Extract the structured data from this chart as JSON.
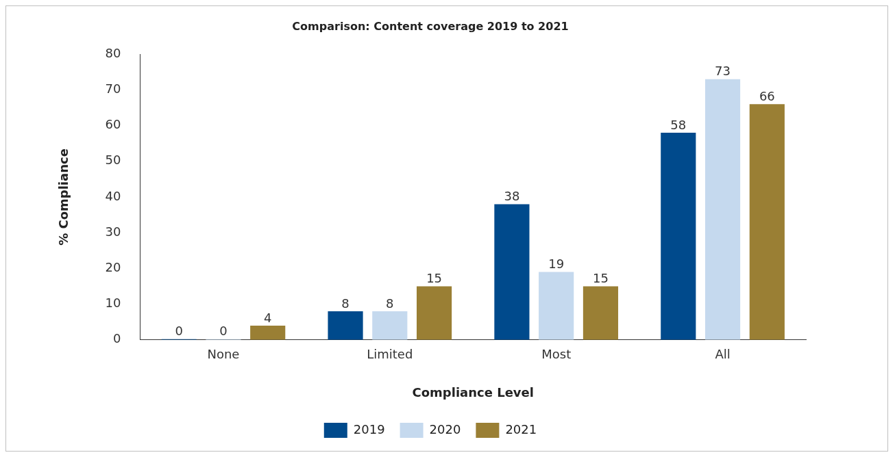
{
  "chart_data": {
    "type": "bar",
    "title": "Comparison: Content coverage 2019 to 2021",
    "xlabel": "Compliance Level",
    "ylabel": "% Compliance",
    "categories": [
      "None",
      "Limited",
      "Most",
      "All"
    ],
    "series": [
      {
        "name": "2019",
        "color": "#004a8c",
        "values": [
          0,
          8,
          38,
          58
        ]
      },
      {
        "name": "2020",
        "color": "#c5d9ee",
        "values": [
          0,
          8,
          19,
          73
        ]
      },
      {
        "name": "2021",
        "color": "#9a7f34",
        "values": [
          4,
          15,
          15,
          66
        ]
      }
    ],
    "ylim": [
      0,
      80
    ],
    "yticks": [
      0,
      10,
      20,
      30,
      40,
      50,
      60,
      70,
      80
    ],
    "grid": false,
    "legend": "bottom",
    "data_labels": true
  }
}
